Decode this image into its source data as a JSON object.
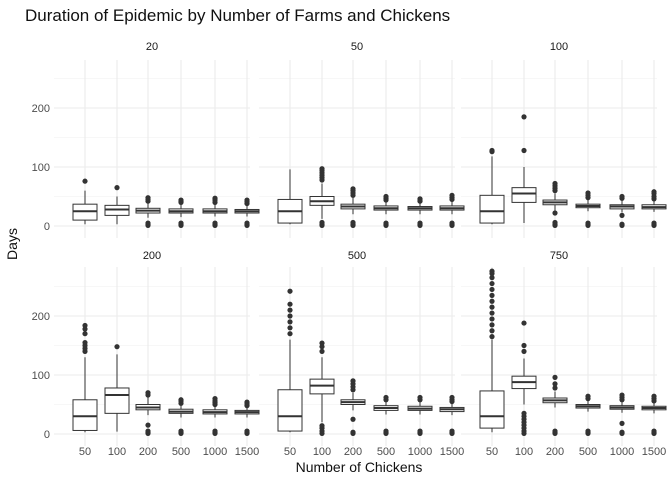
{
  "chart_data": {
    "type": "boxplot",
    "title": "Duration of Epidemic by Number of Farms and Chickens",
    "xlabel": "Number of Chickens",
    "ylabel": "Days",
    "categories": [
      "50",
      "100",
      "200",
      "500",
      "1000",
      "1500"
    ],
    "ylim": [
      0,
      280
    ],
    "yticks": [
      0,
      100,
      200
    ],
    "grid": true,
    "facet_layout": "2 rows x 3 columns",
    "colors": {
      "box_fill": "#ffffff",
      "box_stroke": "#333333",
      "grid_major": "#ebebeb",
      "grid_minor": "#f5f5f5"
    },
    "panels": [
      {
        "label": "20",
        "boxes": [
          {
            "min": 3,
            "q1": 10,
            "median": 25,
            "q3": 37,
            "max": 60,
            "outliers": [
              76
            ]
          },
          {
            "min": 3,
            "q1": 18,
            "median": 28,
            "q3": 35,
            "max": 50,
            "outliers": [
              65
            ]
          },
          {
            "min": 14,
            "q1": 22,
            "median": 26,
            "q3": 30,
            "max": 38,
            "outliers": [
              1,
              3,
              5,
              42,
              45,
              48
            ]
          },
          {
            "min": 15,
            "q1": 22,
            "median": 25,
            "q3": 29,
            "max": 36,
            "outliers": [
              1,
              3,
              5,
              40,
              42,
              44
            ]
          },
          {
            "min": 16,
            "q1": 22,
            "median": 25,
            "q3": 29,
            "max": 36,
            "outliers": [
              1,
              3,
              5,
              40,
              44,
              47
            ]
          },
          {
            "min": 16,
            "q1": 22,
            "median": 25,
            "q3": 28,
            "max": 35,
            "outliers": [
              1,
              3,
              5,
              38,
              41,
              44
            ]
          }
        ]
      },
      {
        "label": "50",
        "boxes": [
          {
            "min": 3,
            "q1": 5,
            "median": 25,
            "q3": 45,
            "max": 96,
            "outliers": []
          },
          {
            "min": 12,
            "q1": 35,
            "median": 42,
            "q3": 50,
            "max": 72,
            "outliers": [
              1,
              3,
              6,
              78,
              82,
              86,
              90,
              94,
              97
            ]
          },
          {
            "min": 20,
            "q1": 29,
            "median": 33,
            "q3": 37,
            "max": 48,
            "outliers": [
              1,
              3,
              6,
              52,
              56,
              60,
              63
            ]
          },
          {
            "min": 20,
            "q1": 27,
            "median": 30,
            "q3": 34,
            "max": 42,
            "outliers": [
              1,
              3,
              5,
              44,
              47,
              50
            ]
          },
          {
            "min": 20,
            "q1": 27,
            "median": 30,
            "q3": 33,
            "max": 40,
            "outliers": [
              1,
              3,
              5,
              42,
              44,
              46
            ]
          },
          {
            "min": 20,
            "q1": 27,
            "median": 30,
            "q3": 34,
            "max": 42,
            "outliers": [
              1,
              3,
              5,
              45,
              48,
              52
            ]
          }
        ]
      },
      {
        "label": "100",
        "boxes": [
          {
            "min": 3,
            "q1": 5,
            "median": 25,
            "q3": 52,
            "max": 118,
            "outliers": [
              126,
              128
            ]
          },
          {
            "min": 5,
            "q1": 40,
            "median": 55,
            "q3": 65,
            "max": 100,
            "outliers": [
              128,
              185
            ]
          },
          {
            "min": 25,
            "q1": 36,
            "median": 40,
            "q3": 44,
            "max": 55,
            "outliers": [
              1,
              3,
              6,
              22,
              60,
              64,
              68,
              72
            ]
          },
          {
            "min": 25,
            "q1": 31,
            "median": 34,
            "q3": 37,
            "max": 45,
            "outliers": [
              1,
              3,
              5,
              48,
              52,
              56
            ]
          },
          {
            "min": 23,
            "q1": 29,
            "median": 33,
            "q3": 36,
            "max": 44,
            "outliers": [
              1,
              3,
              18,
              47,
              50
            ]
          },
          {
            "min": 24,
            "q1": 29,
            "median": 32,
            "q3": 36,
            "max": 43,
            "outliers": [
              1,
              3,
              5,
              46,
              50,
              55,
              58
            ]
          }
        ]
      },
      {
        "label": "200",
        "boxes": [
          {
            "min": 3,
            "q1": 6,
            "median": 30,
            "q3": 58,
            "max": 130,
            "outliers": [
              140,
              145,
              150,
              155,
              170,
              178,
              184
            ]
          },
          {
            "min": 4,
            "q1": 35,
            "median": 66,
            "q3": 78,
            "max": 135,
            "outliers": [
              148
            ]
          },
          {
            "min": 32,
            "q1": 41,
            "median": 45,
            "q3": 50,
            "max": 62,
            "outliers": [
              1,
              3,
              5,
              15,
              66,
              70
            ]
          },
          {
            "min": 28,
            "q1": 35,
            "median": 38,
            "q3": 42,
            "max": 50,
            "outliers": [
              1,
              3,
              5,
              52,
              56,
              58
            ]
          },
          {
            "min": 28,
            "q1": 34,
            "median": 37,
            "q3": 41,
            "max": 48,
            "outliers": [
              1,
              3,
              5,
              50,
              53,
              56,
              60
            ]
          },
          {
            "min": 28,
            "q1": 34,
            "median": 37,
            "q3": 40,
            "max": 47,
            "outliers": [
              1,
              3,
              5,
              48,
              51,
              54
            ]
          }
        ]
      },
      {
        "label": "500",
        "boxes": [
          {
            "min": 3,
            "q1": 5,
            "median": 30,
            "q3": 75,
            "max": 160,
            "outliers": [
              170,
              180,
              190,
              200,
              210,
              220,
              242
            ]
          },
          {
            "min": 20,
            "q1": 68,
            "median": 82,
            "q3": 93,
            "max": 130,
            "outliers": [
              1,
              5,
              10,
              14,
              140,
              148,
              154
            ]
          },
          {
            "min": 40,
            "q1": 50,
            "median": 54,
            "q3": 58,
            "max": 70,
            "outliers": [
              1,
              3,
              25,
              75,
              80,
              85,
              90
            ]
          },
          {
            "min": 33,
            "q1": 40,
            "median": 44,
            "q3": 48,
            "max": 56,
            "outliers": [
              1,
              3,
              5,
              58,
              62
            ]
          },
          {
            "min": 33,
            "q1": 40,
            "median": 43,
            "q3": 47,
            "max": 55,
            "outliers": [
              1,
              3,
              5,
              58,
              62
            ]
          },
          {
            "min": 32,
            "q1": 38,
            "median": 42,
            "q3": 45,
            "max": 53,
            "outliers": [
              1,
              3,
              5,
              55,
              58,
              62
            ]
          }
        ]
      },
      {
        "label": "750",
        "boxes": [
          {
            "min": 3,
            "q1": 10,
            "median": 30,
            "q3": 73,
            "max": 160,
            "outliers": [
              165,
              175,
              185,
              195,
              205,
              215,
              225,
              235,
              245,
              255,
              265,
              272,
              276
            ]
          },
          {
            "min": 50,
            "q1": 77,
            "median": 88,
            "q3": 98,
            "max": 128,
            "outliers": [
              1,
              5,
              10,
              15,
              20,
              25,
              30,
              35,
              140,
              150,
              188
            ]
          },
          {
            "min": 45,
            "q1": 53,
            "median": 57,
            "q3": 61,
            "max": 72,
            "outliers": [
              1,
              3,
              5,
              78,
              85,
              96
            ]
          },
          {
            "min": 38,
            "q1": 44,
            "median": 47,
            "q3": 50,
            "max": 56,
            "outliers": [
              1,
              3,
              5,
              60,
              64
            ]
          },
          {
            "min": 36,
            "q1": 42,
            "median": 45,
            "q3": 48,
            "max": 54,
            "outliers": [
              1,
              3,
              18,
              58,
              62,
              66
            ]
          },
          {
            "min": 35,
            "q1": 41,
            "median": 44,
            "q3": 47,
            "max": 53,
            "outliers": [
              1,
              3,
              5,
              56,
              60,
              64
            ]
          }
        ]
      }
    ]
  }
}
